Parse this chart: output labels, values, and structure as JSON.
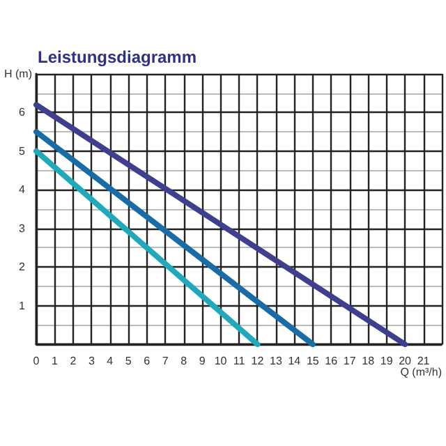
{
  "chart_data": {
    "type": "line",
    "title": "Leistungsdiagramm",
    "xlabel": "Q (m³/h)",
    "ylabel": "H (m)",
    "xlim": [
      0,
      22
    ],
    "ylim": [
      0,
      7
    ],
    "xticks": [
      0,
      1,
      2,
      3,
      4,
      5,
      6,
      7,
      8,
      9,
      10,
      11,
      12,
      13,
      14,
      15,
      16,
      17,
      18,
      19,
      20,
      21
    ],
    "yticks": [
      {
        "value": 0,
        "label": null
      },
      1,
      2,
      3,
      4,
      5,
      6,
      {
        "value": 7,
        "label": null
      }
    ],
    "grid": true,
    "marker": "none",
    "line_style": "solid",
    "series": [
      {
        "color": "#1fa9b9",
        "x": [
          0,
          12
        ],
        "values": [
          5,
          0
        ]
      },
      {
        "color": "#1a6ca6",
        "x": [
          0,
          15
        ],
        "values": [
          5.5,
          0
        ]
      },
      {
        "color": "#3e3f8e",
        "x": [
          0,
          20
        ],
        "values": [
          6.2,
          0
        ]
      }
    ]
  }
}
